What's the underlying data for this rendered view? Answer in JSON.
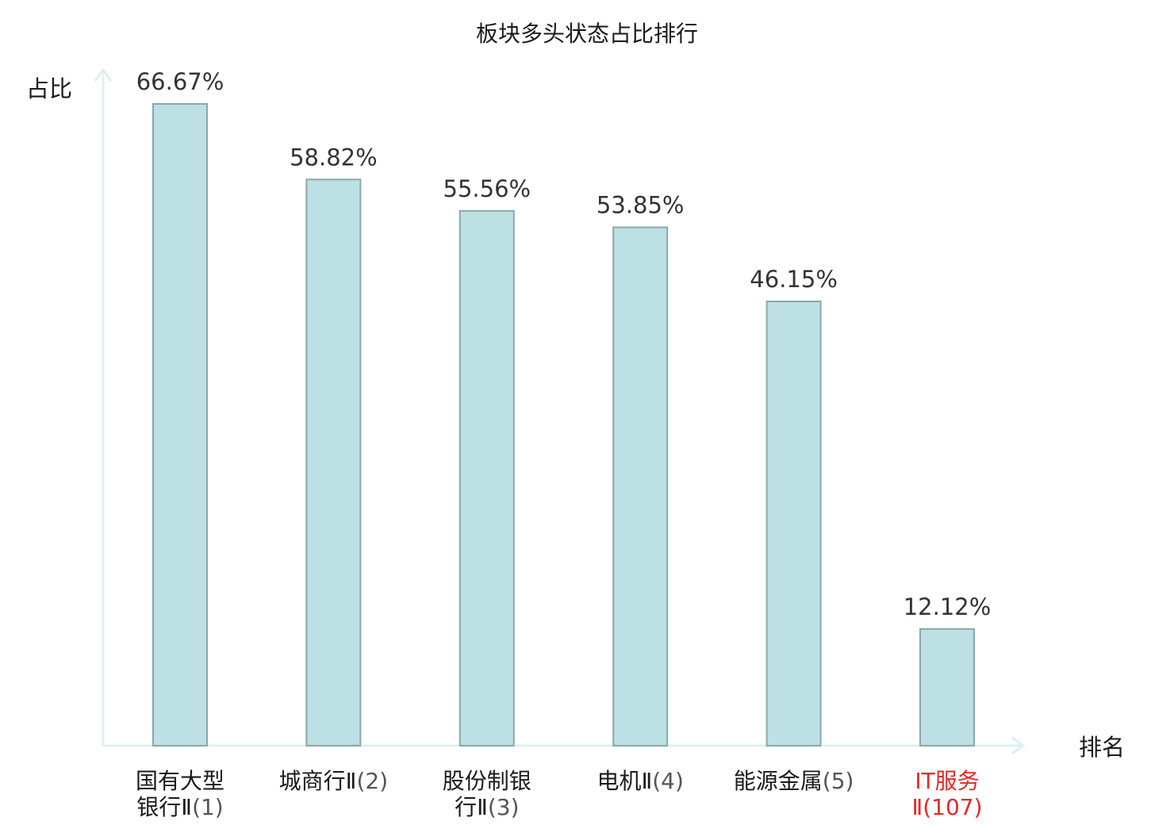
{
  "chart_data": {
    "type": "bar",
    "title": "板块多头状态占比排行",
    "ylabel": "占比",
    "xlabel": "排名",
    "ylim": [
      0,
      70
    ],
    "grid": false,
    "legend": "none",
    "categories": [
      {
        "lines": [
          [
            {
              "t": "国有大型",
              "c": "name"
            }
          ],
          [
            {
              "t": "银行Ⅱ",
              "c": "name"
            },
            {
              "t": "(1)",
              "c": "rank"
            }
          ]
        ]
      },
      {
        "lines": [
          [
            {
              "t": "城商行Ⅱ",
              "c": "name"
            },
            {
              "t": "(2)",
              "c": "rank"
            }
          ]
        ]
      },
      {
        "lines": [
          [
            {
              "t": "股份制银",
              "c": "name"
            }
          ],
          [
            {
              "t": "行Ⅱ",
              "c": "name"
            },
            {
              "t": "(3)",
              "c": "rank"
            }
          ]
        ]
      },
      {
        "lines": [
          [
            {
              "t": "电机Ⅱ",
              "c": "name"
            },
            {
              "t": "(4)",
              "c": "rank"
            }
          ]
        ]
      },
      {
        "lines": [
          [
            {
              "t": "能源金属",
              "c": "name"
            },
            {
              "t": "(5)",
              "c": "rank"
            }
          ]
        ]
      },
      {
        "lines": [
          [
            {
              "t": "IT服务",
              "c": "highlight"
            }
          ],
          [
            {
              "t": "Ⅱ(107)",
              "c": "highlight"
            }
          ]
        ]
      }
    ],
    "values": [
      66.67,
      58.82,
      55.56,
      53.85,
      46.15,
      12.12
    ],
    "value_labels": [
      "66.67%",
      "58.82%",
      "55.56%",
      "53.85%",
      "46.15%",
      "12.12%"
    ]
  },
  "colors": {
    "bar_fill": "#bce0e3",
    "bar_stroke": "#8aa8aa",
    "axis": "#dff0ee",
    "highlight": "#e02a2a",
    "rank_text": "#555555"
  }
}
